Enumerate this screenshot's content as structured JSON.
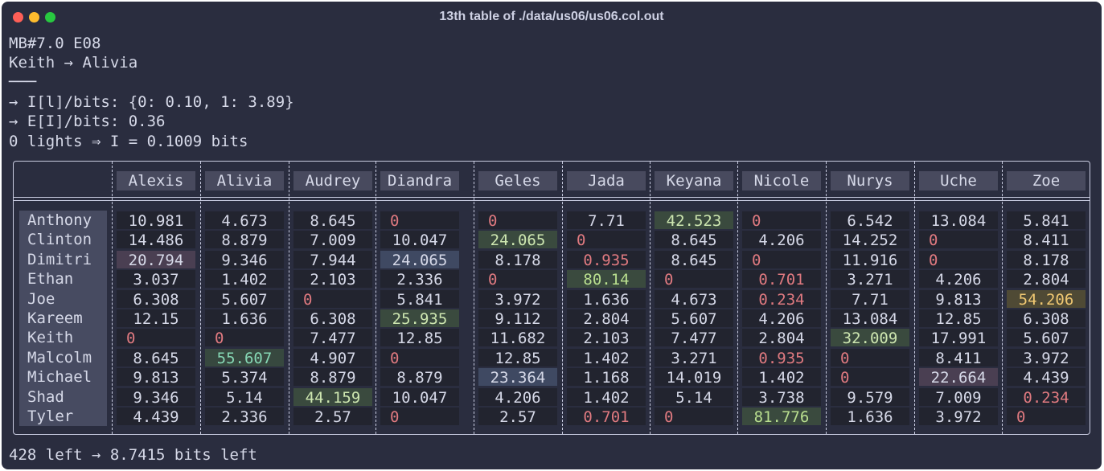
{
  "window": {
    "title": "13th table of ./data/us06/us06.col.out"
  },
  "info": {
    "line1": "MB#7.0 E08",
    "line2": "Keith → Alivia",
    "line3": "───",
    "line4": "→ I[l]/bits: {0: 0.10, 1: 3.89}",
    "line5": "→ E[I]/bits: 0.36",
    "line6": "0 lights ⇒ I = 0.1009 bits"
  },
  "table": {
    "columns": [
      "Alexis",
      "Alivia",
      "Audrey",
      "Diandra",
      "Geles",
      "Jada",
      "Keyana",
      "Nicole",
      "Nurys",
      "Uche",
      "Zoe"
    ],
    "rows": [
      {
        "name": "Anthony",
        "values": [
          "10.981",
          "4.673",
          "8.645",
          "0",
          "0",
          "7.71",
          "42.523",
          "0",
          "6.542",
          "13.084",
          "5.841"
        ]
      },
      {
        "name": "Clinton",
        "values": [
          "14.486",
          "8.879",
          "7.009",
          "10.047",
          "24.065",
          "0",
          "8.645",
          "4.206",
          "14.252",
          "0",
          "8.411"
        ]
      },
      {
        "name": "Dimitri",
        "values": [
          "20.794",
          "9.346",
          "7.944",
          "24.065",
          "8.178",
          "0.935",
          "8.645",
          "0",
          "11.916",
          "0",
          "8.178"
        ]
      },
      {
        "name": "Ethan",
        "values": [
          "3.037",
          "1.402",
          "2.103",
          "2.336",
          "0",
          "80.14",
          "0",
          "0.701",
          "3.271",
          "4.206",
          "2.804"
        ]
      },
      {
        "name": "Joe",
        "values": [
          "6.308",
          "5.607",
          "0",
          "5.841",
          "3.972",
          "1.636",
          "4.673",
          "0.234",
          "7.71",
          "9.813",
          "54.206"
        ]
      },
      {
        "name": "Kareem",
        "values": [
          "12.15",
          "1.636",
          "6.308",
          "25.935",
          "9.112",
          "2.804",
          "5.607",
          "4.206",
          "13.084",
          "12.85",
          "6.308"
        ]
      },
      {
        "name": "Keith",
        "values": [
          "0",
          "0",
          "7.477",
          "12.85",
          "11.682",
          "2.103",
          "7.477",
          "2.804",
          "32.009",
          "17.991",
          "5.607"
        ]
      },
      {
        "name": "Malcolm",
        "values": [
          "8.645",
          "55.607",
          "4.907",
          "0",
          "12.85",
          "1.402",
          "3.271",
          "0.935",
          "0",
          "8.411",
          "3.972"
        ]
      },
      {
        "name": "Michael",
        "values": [
          "9.813",
          "5.374",
          "8.879",
          "8.879",
          "23.364",
          "1.168",
          "14.019",
          "1.402",
          "0",
          "22.664",
          "4.439"
        ]
      },
      {
        "name": "Shad",
        "values": [
          "9.346",
          "5.14",
          "44.159",
          "10.047",
          "4.206",
          "1.402",
          "5.14",
          "3.738",
          "9.579",
          "7.009",
          "0.234"
        ]
      },
      {
        "name": "Tyler",
        "values": [
          "4.439",
          "2.336",
          "2.57",
          "0",
          "2.57",
          "0.701",
          "0",
          "81.776",
          "1.636",
          "3.972",
          "0"
        ]
      }
    ],
    "highlights": [
      {
        "r": 0,
        "c": 6,
        "style": "green"
      },
      {
        "r": 1,
        "c": 4,
        "style": "green"
      },
      {
        "r": 2,
        "c": 0,
        "style": "purple"
      },
      {
        "r": 2,
        "c": 3,
        "style": "blue"
      },
      {
        "r": 3,
        "c": 5,
        "style": "green-bright"
      },
      {
        "r": 4,
        "c": 10,
        "style": "yellow"
      },
      {
        "r": 5,
        "c": 3,
        "style": "green"
      },
      {
        "r": 6,
        "c": 8,
        "style": "green"
      },
      {
        "r": 7,
        "c": 1,
        "style": "teal"
      },
      {
        "r": 8,
        "c": 4,
        "style": "blue"
      },
      {
        "r": 8,
        "c": 9,
        "style": "purple"
      },
      {
        "r": 9,
        "c": 2,
        "style": "green"
      },
      {
        "r": 10,
        "c": 7,
        "style": "green-bright"
      }
    ],
    "red_values": [
      "0",
      "0.935",
      "0.701",
      "0.234"
    ],
    "colors": {
      "text": "#d6d9e8",
      "red": "#e07a80",
      "green": "#3a4a3e",
      "green_text": "#cde6b0",
      "green_bright_text": "#b9df8f",
      "blue": "#3f4962",
      "purple": "#4a3f52",
      "yellow": "#4f4a35",
      "yellow_text": "#f0c872",
      "teal": "#37483f",
      "teal_text": "#86d8b5"
    }
  },
  "footer": {
    "text": "428 left → 8.7415 bits left"
  }
}
